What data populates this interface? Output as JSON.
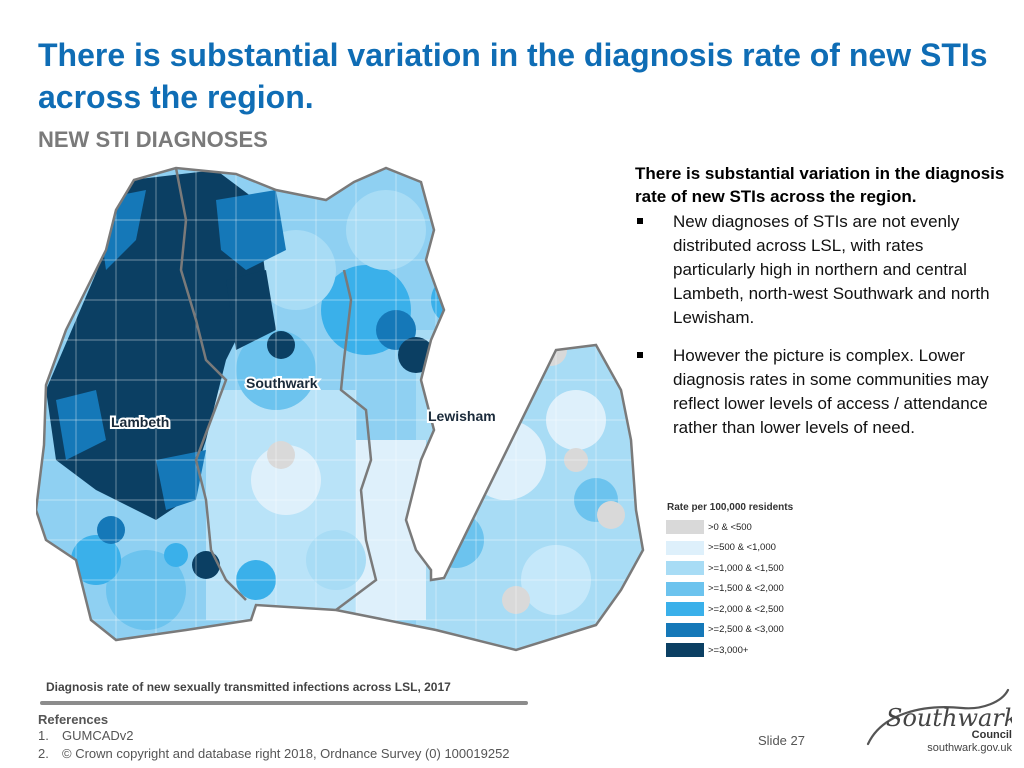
{
  "slide": {
    "title": "There is substantial variation in the diagnosis rate of new STIs across the region.",
    "subtitle": "NEW STI DIAGNOSES",
    "number": "Slide 27"
  },
  "map": {
    "labels": [
      "Southwark",
      "Lambeth",
      "Lewisham"
    ],
    "caption": "Diagnosis rate of new sexually transmitted infections across LSL, 2017"
  },
  "legend": {
    "title": "Rate per 100,000 residents",
    "items": [
      {
        "label": ">0 & <500",
        "color": "#d9d9d9"
      },
      {
        "label": ">=500 & <1,000",
        "color": "#def0fb"
      },
      {
        "label": ">=1,000 & <1,500",
        "color": "#a8dcf5"
      },
      {
        "label": ">=1,500 & <2,000",
        "color": "#6cc3ee"
      },
      {
        "label": ">=2,000 & <2,500",
        "color": "#3ab0ea"
      },
      {
        "label": ">=2,500 & <3,000",
        "color": "#1578b8"
      },
      {
        "label": ">=3,000+",
        "color": "#0b3f63"
      }
    ]
  },
  "summary": {
    "heading": "There is substantial variation in the diagnosis rate of new STIs across the region.",
    "bullets": [
      "New diagnoses of STIs are not evenly distributed across LSL, with rates particularly high in northern and central Lambeth, north-west Southwark and north Lewisham.",
      "However the picture is complex. Lower diagnosis rates in some communities may reflect lower levels of access / attendance rather than lower levels of need."
    ]
  },
  "references": {
    "title": "References",
    "items": [
      {
        "num": "1.",
        "text": "GUMCADv2"
      },
      {
        "num": "2.",
        "text": "© Crown copyright and database right 2018, Ordnance Survey (0) 100019252"
      }
    ]
  },
  "logo": {
    "wordmark": "Southwark",
    "council": "Council",
    "url": "southwark.gov.uk"
  }
}
